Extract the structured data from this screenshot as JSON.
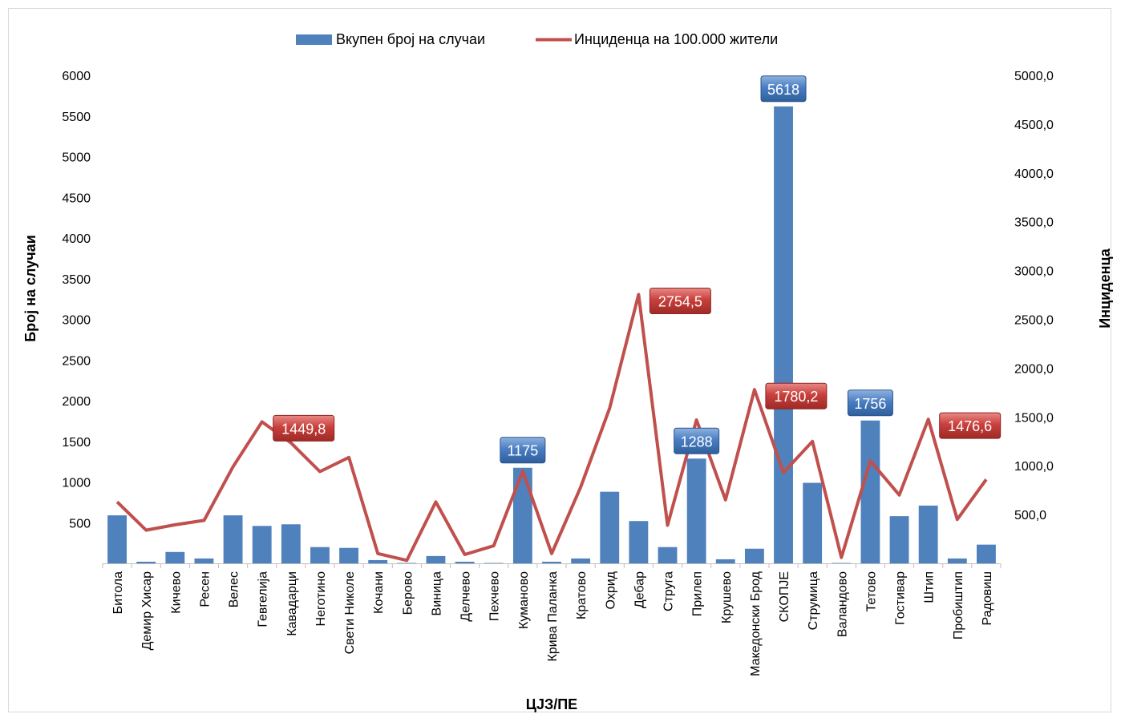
{
  "chart_data": {
    "type": "bar",
    "legend_position": "top",
    "xlabel": "ЦЈЗ/ПЕ",
    "ylabel": "Број на случаи",
    "y2label": "Инциденца",
    "ylim": [
      0,
      6000
    ],
    "y2lim": [
      0,
      5000
    ],
    "yticks": [
      "500",
      "1000",
      "1500",
      "2000",
      "2500",
      "3000",
      "3500",
      "4000",
      "4500",
      "5000",
      "5500",
      "6000"
    ],
    "y2ticks": [
      "500,0",
      "1000,0",
      "1500,0",
      "2000,0",
      "2500,0",
      "3000,0",
      "3500,0",
      "4000,0",
      "4500,0",
      "5000,0"
    ],
    "categories": [
      "Битола",
      "Демир Хисар",
      "Кичево",
      "Ресен",
      "Велес",
      "Гевгелија",
      "Кавадарци",
      "Неготино",
      "Свети Николе",
      "Кочани",
      "Берово",
      "Виница",
      "Делчево",
      "Пехчево",
      "Куманово",
      "Крива Паланка",
      "Кратово",
      "Охрид",
      "Дебар",
      "Струга",
      "Прилеп",
      "Крушево",
      "Македонски Брод",
      "СКОПЈЕ",
      "Струмица",
      "Валандово",
      "Тетово",
      "Гостивар",
      "Штип",
      "Пробиштип",
      "Радовиш"
    ],
    "series": [
      {
        "name": "Вкупен број на случаи",
        "type": "bar",
        "axis": "left",
        "color": "#4f81bd",
        "values": [
          590,
          20,
          140,
          60,
          590,
          460,
          480,
          200,
          190,
          40,
          5,
          90,
          20,
          5,
          1175,
          20,
          60,
          880,
          520,
          200,
          1288,
          50,
          180,
          5618,
          990,
          5,
          1756,
          580,
          710,
          60,
          230
        ]
      },
      {
        "name": "Инциденца на 100.000 жители",
        "type": "line",
        "axis": "right",
        "color": "#c0504d",
        "values": [
          630,
          340,
          395,
          440,
          990,
          1449.8,
          1235,
          940,
          1085,
          100,
          30,
          630,
          90,
          180,
          945,
          100,
          780,
          1590,
          2754.5,
          390,
          1470,
          650,
          1780,
          930,
          1250,
          60,
          1050,
          700,
          1476.6,
          450,
          860
        ]
      }
    ],
    "annotations": [
      {
        "series": 0,
        "index": 14,
        "text": "1175"
      },
      {
        "series": 0,
        "index": 20,
        "text": "1288"
      },
      {
        "series": 0,
        "index": 23,
        "text": "5618"
      },
      {
        "series": 0,
        "index": 26,
        "text": "1756"
      },
      {
        "series": 1,
        "index": 5,
        "text": "1449,8"
      },
      {
        "series": 1,
        "index": 18,
        "text": "2754,5"
      },
      {
        "series": 1,
        "index": 22,
        "text": "1780,2"
      },
      {
        "series": 1,
        "index": 28,
        "text": "1476,6"
      }
    ]
  }
}
